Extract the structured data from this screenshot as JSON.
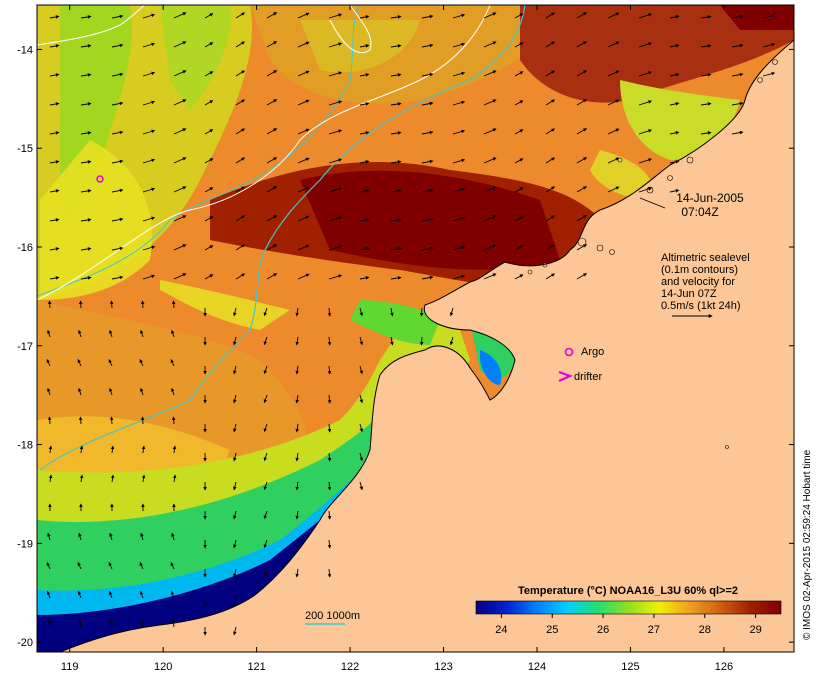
{
  "map": {
    "lon_range": [
      118.65,
      126.75
    ],
    "lat_range": [
      -20.1,
      -13.55
    ],
    "lon_ticks": [
      119,
      120,
      121,
      122,
      123,
      124,
      125,
      126
    ],
    "lat_ticks": [
      -14,
      -15,
      -16,
      -17,
      -18,
      -19,
      -20
    ],
    "date_line1": "14-Jun-2005",
    "date_line2": "07:04Z",
    "legend_lines": [
      "Altimetric sealevel",
      "(0.1m contours)",
      "and velocity for",
      "14-Jun 07Z",
      "0.5m/s (1kt 24h)"
    ],
    "argo_label": "Argo",
    "drifter_label": "drifter",
    "depth_label": "200  1000m",
    "credit": "© IMOS 02-Apr-2015 02:59:24 Hobart time",
    "colors": {
      "land": "#fdc696",
      "deep_water_background": "#f08a2a",
      "argo_marker": "#e000e0",
      "depth_contour": "#40c8c8",
      "sealevel_contour": "#ffffff"
    }
  },
  "colorbar": {
    "title": "Temperature (°C) NOAA16_L3U 60% ql>=2",
    "ticks": [
      "24",
      "25",
      "26",
      "27",
      "28",
      "29"
    ],
    "range": [
      23.5,
      29.5
    ],
    "stops": [
      "#000080",
      "#0020d0",
      "#0080ff",
      "#00d0ff",
      "#20e070",
      "#90e020",
      "#f0f000",
      "#f0a020",
      "#d06010",
      "#a02000",
      "#800000"
    ]
  }
}
